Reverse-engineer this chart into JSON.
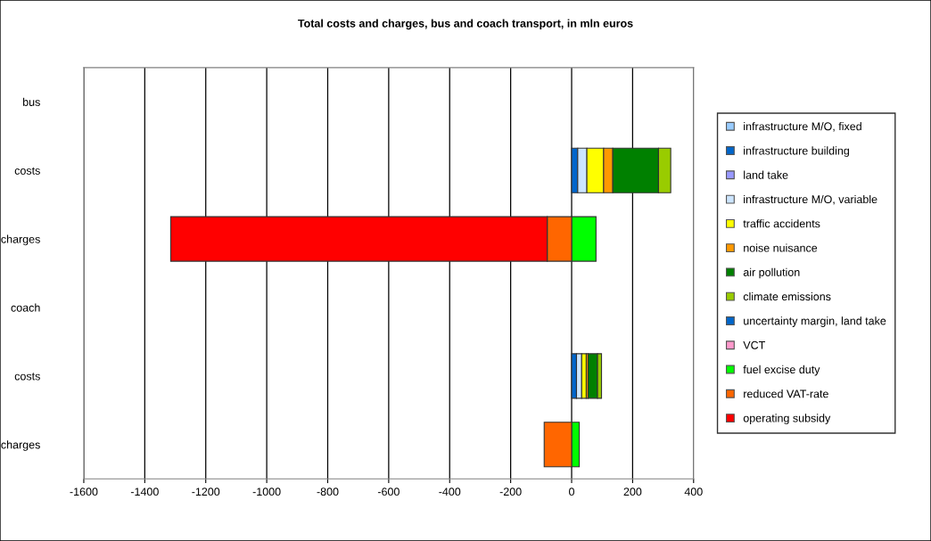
{
  "chart_data": {
    "type": "bar",
    "orientation": "horizontal",
    "stacked": true,
    "title": "Total costs and charges, bus and coach transport, in mln euros",
    "categories": [
      "bus",
      "costs",
      "charges",
      "coach",
      "costs",
      "charges"
    ],
    "series": [
      {
        "name": "infrastructure M/O, fixed",
        "color": "#99ccff",
        "values": [
          null,
          null,
          null,
          null,
          null,
          null
        ]
      },
      {
        "name": "infrastructure building",
        "color": "#0066cc",
        "values": [
          null,
          20,
          null,
          null,
          16,
          null
        ]
      },
      {
        "name": "land take",
        "color": "#9999ff",
        "values": [
          null,
          null,
          null,
          null,
          null,
          null
        ]
      },
      {
        "name": "infrastructure M/O, variable",
        "color": "#cce5ff",
        "values": [
          null,
          30,
          null,
          null,
          17,
          null
        ]
      },
      {
        "name": "traffic accidents",
        "color": "#ffff00",
        "values": [
          null,
          55,
          null,
          null,
          15,
          null
        ]
      },
      {
        "name": "noise nuisance",
        "color": "#ff9900",
        "values": [
          null,
          30,
          null,
          null,
          6,
          null
        ]
      },
      {
        "name": "air pollution",
        "color": "#008000",
        "values": [
          null,
          150,
          null,
          null,
          31,
          null
        ]
      },
      {
        "name": "climate emissions",
        "color": "#99cc00",
        "values": [
          null,
          40,
          null,
          null,
          13,
          null
        ]
      },
      {
        "name": "uncertainty margin, land take",
        "color": "#0066cc",
        "values": [
          null,
          null,
          null,
          null,
          null,
          null
        ]
      },
      {
        "name": "VCT",
        "color": "#ff99cc",
        "values": [
          null,
          null,
          null,
          null,
          null,
          null
        ]
      },
      {
        "name": "fuel excise duty",
        "color": "#00ff00",
        "values": [
          null,
          null,
          80,
          null,
          null,
          25
        ]
      },
      {
        "name": "reduced VAT-rate",
        "color": "#ff6600",
        "values": [
          null,
          null,
          -80,
          null,
          null,
          -90
        ]
      },
      {
        "name": "operating subsidy",
        "color": "#ff0000",
        "values": [
          null,
          null,
          -1235,
          null,
          null,
          null
        ]
      }
    ],
    "xlim": [
      -1600,
      400
    ],
    "xticks": [
      -1600,
      -1400,
      -1200,
      -1000,
      -800,
      -600,
      -400,
      -200,
      0,
      200,
      400
    ],
    "grid": "x",
    "legend": "right"
  }
}
